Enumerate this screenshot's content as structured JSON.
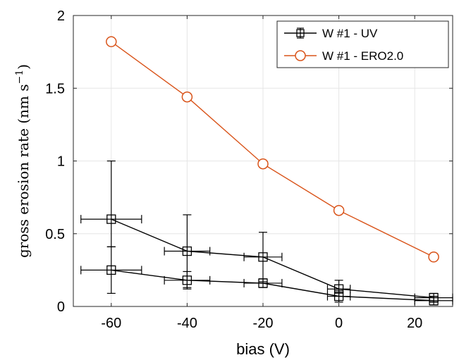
{
  "chart_data": {
    "type": "scatter",
    "xlabel": "bias (V)",
    "ylabel": "gross erosion rate (nm s",
    "ylabel_sup": "−1",
    "ylabel_close": ")",
    "xlim": [
      -70,
      30
    ],
    "ylim": [
      0,
      2
    ],
    "xticks": [
      -60,
      -40,
      -20,
      0,
      20
    ],
    "xtick_labels": [
      "-60",
      "-40",
      "-20",
      "0",
      "20"
    ],
    "yticks": [
      0,
      0.5,
      1,
      1.5,
      2
    ],
    "ytick_labels": [
      "0",
      "0.5",
      "1",
      "1.5",
      "2"
    ],
    "grid": true,
    "legend_position": "top-right",
    "series": [
      {
        "name": "W #1 - UV",
        "color": "#000000",
        "marker": "square",
        "with_errorbars": true,
        "lines": [
          [
            {
              "x": -60,
              "y": 0.6,
              "xerr": 8,
              "ylo": 0.41,
              "yhi": 1.0
            },
            {
              "x": -40,
              "y": 0.38,
              "xerr": 6,
              "ylo": 0.13,
              "yhi": 0.63
            },
            {
              "x": -20,
              "y": 0.34,
              "xerr": 5,
              "ylo": 0.17,
              "yhi": 0.51
            },
            {
              "x": 0,
              "y": 0.12,
              "xerr": 3,
              "ylo": 0.07,
              "yhi": 0.18
            },
            {
              "x": 25,
              "y": 0.06,
              "xerr": 5,
              "ylo": 0.03,
              "yhi": 0.09
            }
          ],
          [
            {
              "x": -60,
              "y": 0.25,
              "xerr": 8,
              "ylo": 0.09,
              "yhi": 0.41
            },
            {
              "x": -40,
              "y": 0.18,
              "xerr": 6,
              "ylo": 0.12,
              "yhi": 0.24
            },
            {
              "x": -20,
              "y": 0.16,
              "xerr": 5,
              "ylo": 0.13,
              "yhi": 0.19
            },
            {
              "x": 0,
              "y": 0.07,
              "xerr": 3,
              "ylo": 0.03,
              "yhi": 0.11
            },
            {
              "x": 25,
              "y": 0.04,
              "xerr": 5,
              "ylo": 0.01,
              "yhi": 0.07
            }
          ]
        ]
      },
      {
        "name": "W #1 - ERO2.0",
        "color": "#d95319",
        "marker": "circle",
        "with_errorbars": false,
        "lines": [
          [
            {
              "x": -60,
              "y": 1.82
            },
            {
              "x": -40,
              "y": 1.44
            },
            {
              "x": -20,
              "y": 0.98
            },
            {
              "x": 0,
              "y": 0.66
            },
            {
              "x": 25,
              "y": 0.34
            }
          ]
        ]
      }
    ]
  }
}
